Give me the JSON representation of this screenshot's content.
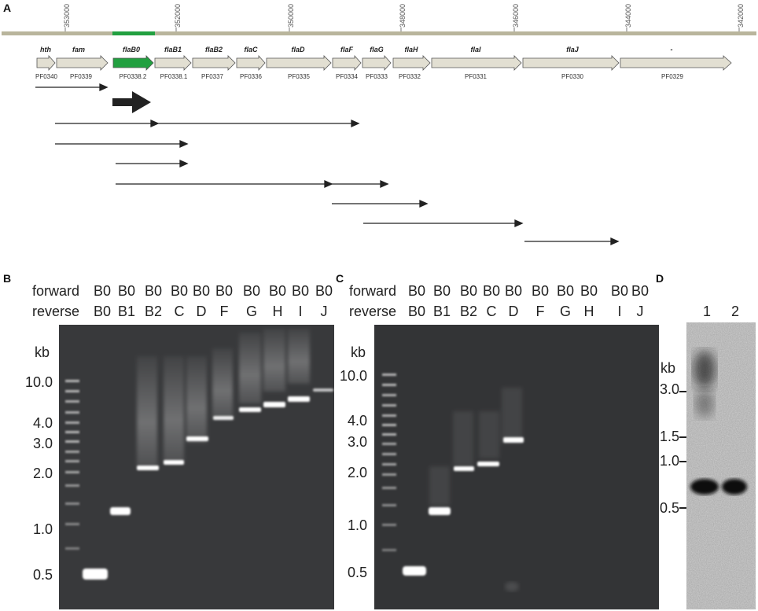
{
  "panels": {
    "a": "A",
    "b": "B",
    "c": "C",
    "d": "D"
  },
  "colors": {
    "genome_bar": "#b9b59c",
    "flaB0_highlight": "#22a040",
    "gene_fill": "#e2dfd2",
    "gene_stroke": "#555555",
    "gel_bg": "#38393b"
  },
  "ruler": {
    "positions": [
      "353000",
      "352000",
      "350000",
      "348000",
      "346000",
      "344000",
      "342000"
    ]
  },
  "genes": [
    {
      "name": "hth",
      "id": "PF0340"
    },
    {
      "name": "fam",
      "id": "PF0339"
    },
    {
      "name": "flaB0",
      "id": "PF0338.2"
    },
    {
      "name": "flaB1",
      "id": "PF0338.1"
    },
    {
      "name": "flaB2",
      "id": "PF0337"
    },
    {
      "name": "flaC",
      "id": "PF0336"
    },
    {
      "name": "flaD",
      "id": "PF0335"
    },
    {
      "name": "flaF",
      "id": "PF0334"
    },
    {
      "name": "flaG",
      "id": "PF0333"
    },
    {
      "name": "flaH",
      "id": "PF0332"
    },
    {
      "name": "flaI",
      "id": "PF0331"
    },
    {
      "name": "flaJ",
      "id": "PF0330"
    },
    {
      "name": "-",
      "id": "PF0329"
    }
  ],
  "gel_b": {
    "forward_label": "forward",
    "reverse_label": "reverse",
    "forward": [
      "B0",
      "B0",
      "B0",
      "B0",
      "B0",
      "B0",
      "B0",
      "B0",
      "B0",
      "B0"
    ],
    "reverse": [
      "B0",
      "B1",
      "B2",
      "C",
      "D",
      "F",
      "G",
      "H",
      "I",
      "J"
    ],
    "kb_label": "kb",
    "ticks": [
      "10.0",
      "4.0",
      "3.0",
      "2.0",
      "1.0",
      "0.5"
    ]
  },
  "gel_c": {
    "forward_label": "forward",
    "reverse_label": "reverse",
    "forward": [
      "B0",
      "B0",
      "B0",
      "B0",
      "B0",
      "B0",
      "B0",
      "B0",
      "B0",
      "B0"
    ],
    "reverse": [
      "B0",
      "B1",
      "B2",
      "C",
      "D",
      "F",
      "G",
      "H",
      "I",
      "J"
    ],
    "kb_label": "kb",
    "ticks": [
      "10.0",
      "4.0",
      "3.0",
      "2.0",
      "1.0",
      "0.5"
    ]
  },
  "blot_d": {
    "lanes": [
      "1",
      "2"
    ],
    "kb_label": "kb",
    "ticks": [
      "3.0",
      "1.5",
      "1.0",
      "0.5"
    ]
  }
}
